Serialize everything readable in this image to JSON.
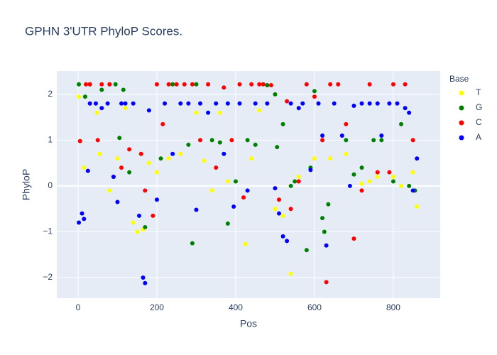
{
  "chart_data": {
    "type": "scatter",
    "title": "GPHN 3'UTR PhyloP Scores.",
    "x_label": "Pos",
    "y_label": "PhyloP",
    "legend_title": "Base",
    "legend": "top-right",
    "grid": true,
    "xlim": [
      -54,
      919
    ],
    "ylim": [
      -2.45,
      2.51
    ],
    "xticks": [
      0,
      200,
      400,
      600,
      800
    ],
    "yticks": [
      {
        "value": -2,
        "label": "−2"
      },
      {
        "value": -1,
        "label": "−1"
      },
      0,
      1,
      2
    ],
    "series": [
      {
        "name": "T",
        "color": "#ffff00",
        "x": [
          2,
          15,
          48,
          55,
          80,
          100,
          120,
          140,
          150,
          165,
          180,
          200,
          230,
          260,
          300,
          320,
          340,
          360,
          380,
          400,
          425,
          440,
          460,
          500,
          520,
          540,
          560,
          600,
          640,
          680,
          720,
          740,
          760,
          800,
          820,
          850,
          860
        ],
        "values": [
          1.95,
          0.4,
          1.6,
          0.7,
          -0.1,
          0.6,
          1.7,
          -0.8,
          -1.0,
          -0.95,
          0.5,
          0.3,
          0.6,
          0.7,
          1.6,
          0.55,
          -0.1,
          1.6,
          0.1,
          0.1,
          -1.27,
          0.6,
          1.65,
          -0.5,
          -0.65,
          -1.92,
          0.2,
          0.6,
          0.6,
          0.7,
          0.05,
          0.1,
          0.2,
          0.2,
          0.0,
          0.3,
          -0.45
        ]
      },
      {
        "name": "G",
        "color": "#008000",
        "x": [
          2,
          18,
          30,
          60,
          80,
          95,
          105,
          115,
          130,
          170,
          210,
          240,
          280,
          290,
          300,
          340,
          360,
          380,
          400,
          430,
          450,
          480,
          500,
          505,
          520,
          540,
          550,
          580,
          590,
          600,
          620,
          625,
          635,
          680,
          700,
          720,
          750,
          770,
          800,
          820,
          840,
          855
        ],
        "values": [
          2.22,
          1.95,
          2.22,
          2.1,
          2.22,
          2.22,
          1.05,
          2.1,
          0.3,
          -0.9,
          0.6,
          2.22,
          0.9,
          -1.25,
          2.22,
          1.0,
          0.95,
          -0.82,
          0.1,
          1.0,
          0.9,
          2.2,
          2.0,
          0.85,
          1.35,
          0.0,
          0.1,
          -1.4,
          0.4,
          2.07,
          -0.7,
          -1.0,
          -0.4,
          1.0,
          0.25,
          0.4,
          1.0,
          1.0,
          0.1,
          1.35,
          0.0,
          -0.1
        ]
      },
      {
        "name": "C",
        "color": "#ff0000",
        "x": [
          5,
          20,
          30,
          50,
          60,
          80,
          90,
          110,
          130,
          160,
          170,
          190,
          200,
          215,
          230,
          250,
          270,
          290,
          310,
          330,
          350,
          370,
          390,
          410,
          420,
          440,
          460,
          470,
          490,
          510,
          530,
          540,
          560,
          580,
          600,
          620,
          630,
          640,
          660,
          680,
          700,
          720,
          740,
          760,
          790,
          800,
          830,
          850
        ],
        "values": [
          0.98,
          2.22,
          2.22,
          1.0,
          2.22,
          2.22,
          0.2,
          0.4,
          0.8,
          0.7,
          -0.1,
          -0.65,
          2.22,
          1.35,
          2.22,
          2.22,
          2.22,
          2.22,
          1.0,
          2.22,
          0.4,
          2.15,
          1.0,
          2.22,
          -0.25,
          2.22,
          2.22,
          2.22,
          2.2,
          -0.3,
          1.85,
          -0.5,
          0.1,
          2.22,
          1.95,
          1.0,
          -2.1,
          2.22,
          2.22,
          1.35,
          -1.15,
          -0.1,
          2.22,
          0.3,
          0.3,
          2.22,
          2.22,
          1.0
        ]
      },
      {
        "name": "A",
        "color": "#0000ff",
        "x": [
          2,
          10,
          15,
          25,
          30,
          45,
          60,
          75,
          90,
          100,
          110,
          120,
          140,
          155,
          165,
          170,
          180,
          200,
          220,
          240,
          260,
          280,
          300,
          310,
          330,
          350,
          370,
          380,
          395,
          410,
          430,
          450,
          480,
          500,
          510,
          520,
          530,
          540,
          560,
          570,
          590,
          610,
          620,
          630,
          650,
          670,
          690,
          700,
          720,
          740,
          760,
          770,
          790,
          810,
          830,
          840,
          850,
          860
        ],
        "values": [
          -0.8,
          -0.6,
          -0.72,
          0.33,
          1.8,
          1.8,
          1.7,
          1.8,
          0.2,
          -0.35,
          1.8,
          1.8,
          1.8,
          -0.65,
          -2.0,
          -2.12,
          1.65,
          -0.3,
          1.8,
          0.7,
          1.8,
          1.8,
          -0.52,
          1.8,
          1.6,
          1.8,
          0.7,
          1.8,
          -0.45,
          1.8,
          -0.1,
          1.8,
          1.8,
          -0.05,
          -0.6,
          -1.1,
          -1.2,
          1.8,
          1.7,
          1.8,
          0.35,
          1.8,
          1.1,
          -1.3,
          1.8,
          1.1,
          0.0,
          1.75,
          1.8,
          1.8,
          1.8,
          1.1,
          1.8,
          1.8,
          1.7,
          1.6,
          -0.1,
          0.6
        ]
      }
    ]
  }
}
